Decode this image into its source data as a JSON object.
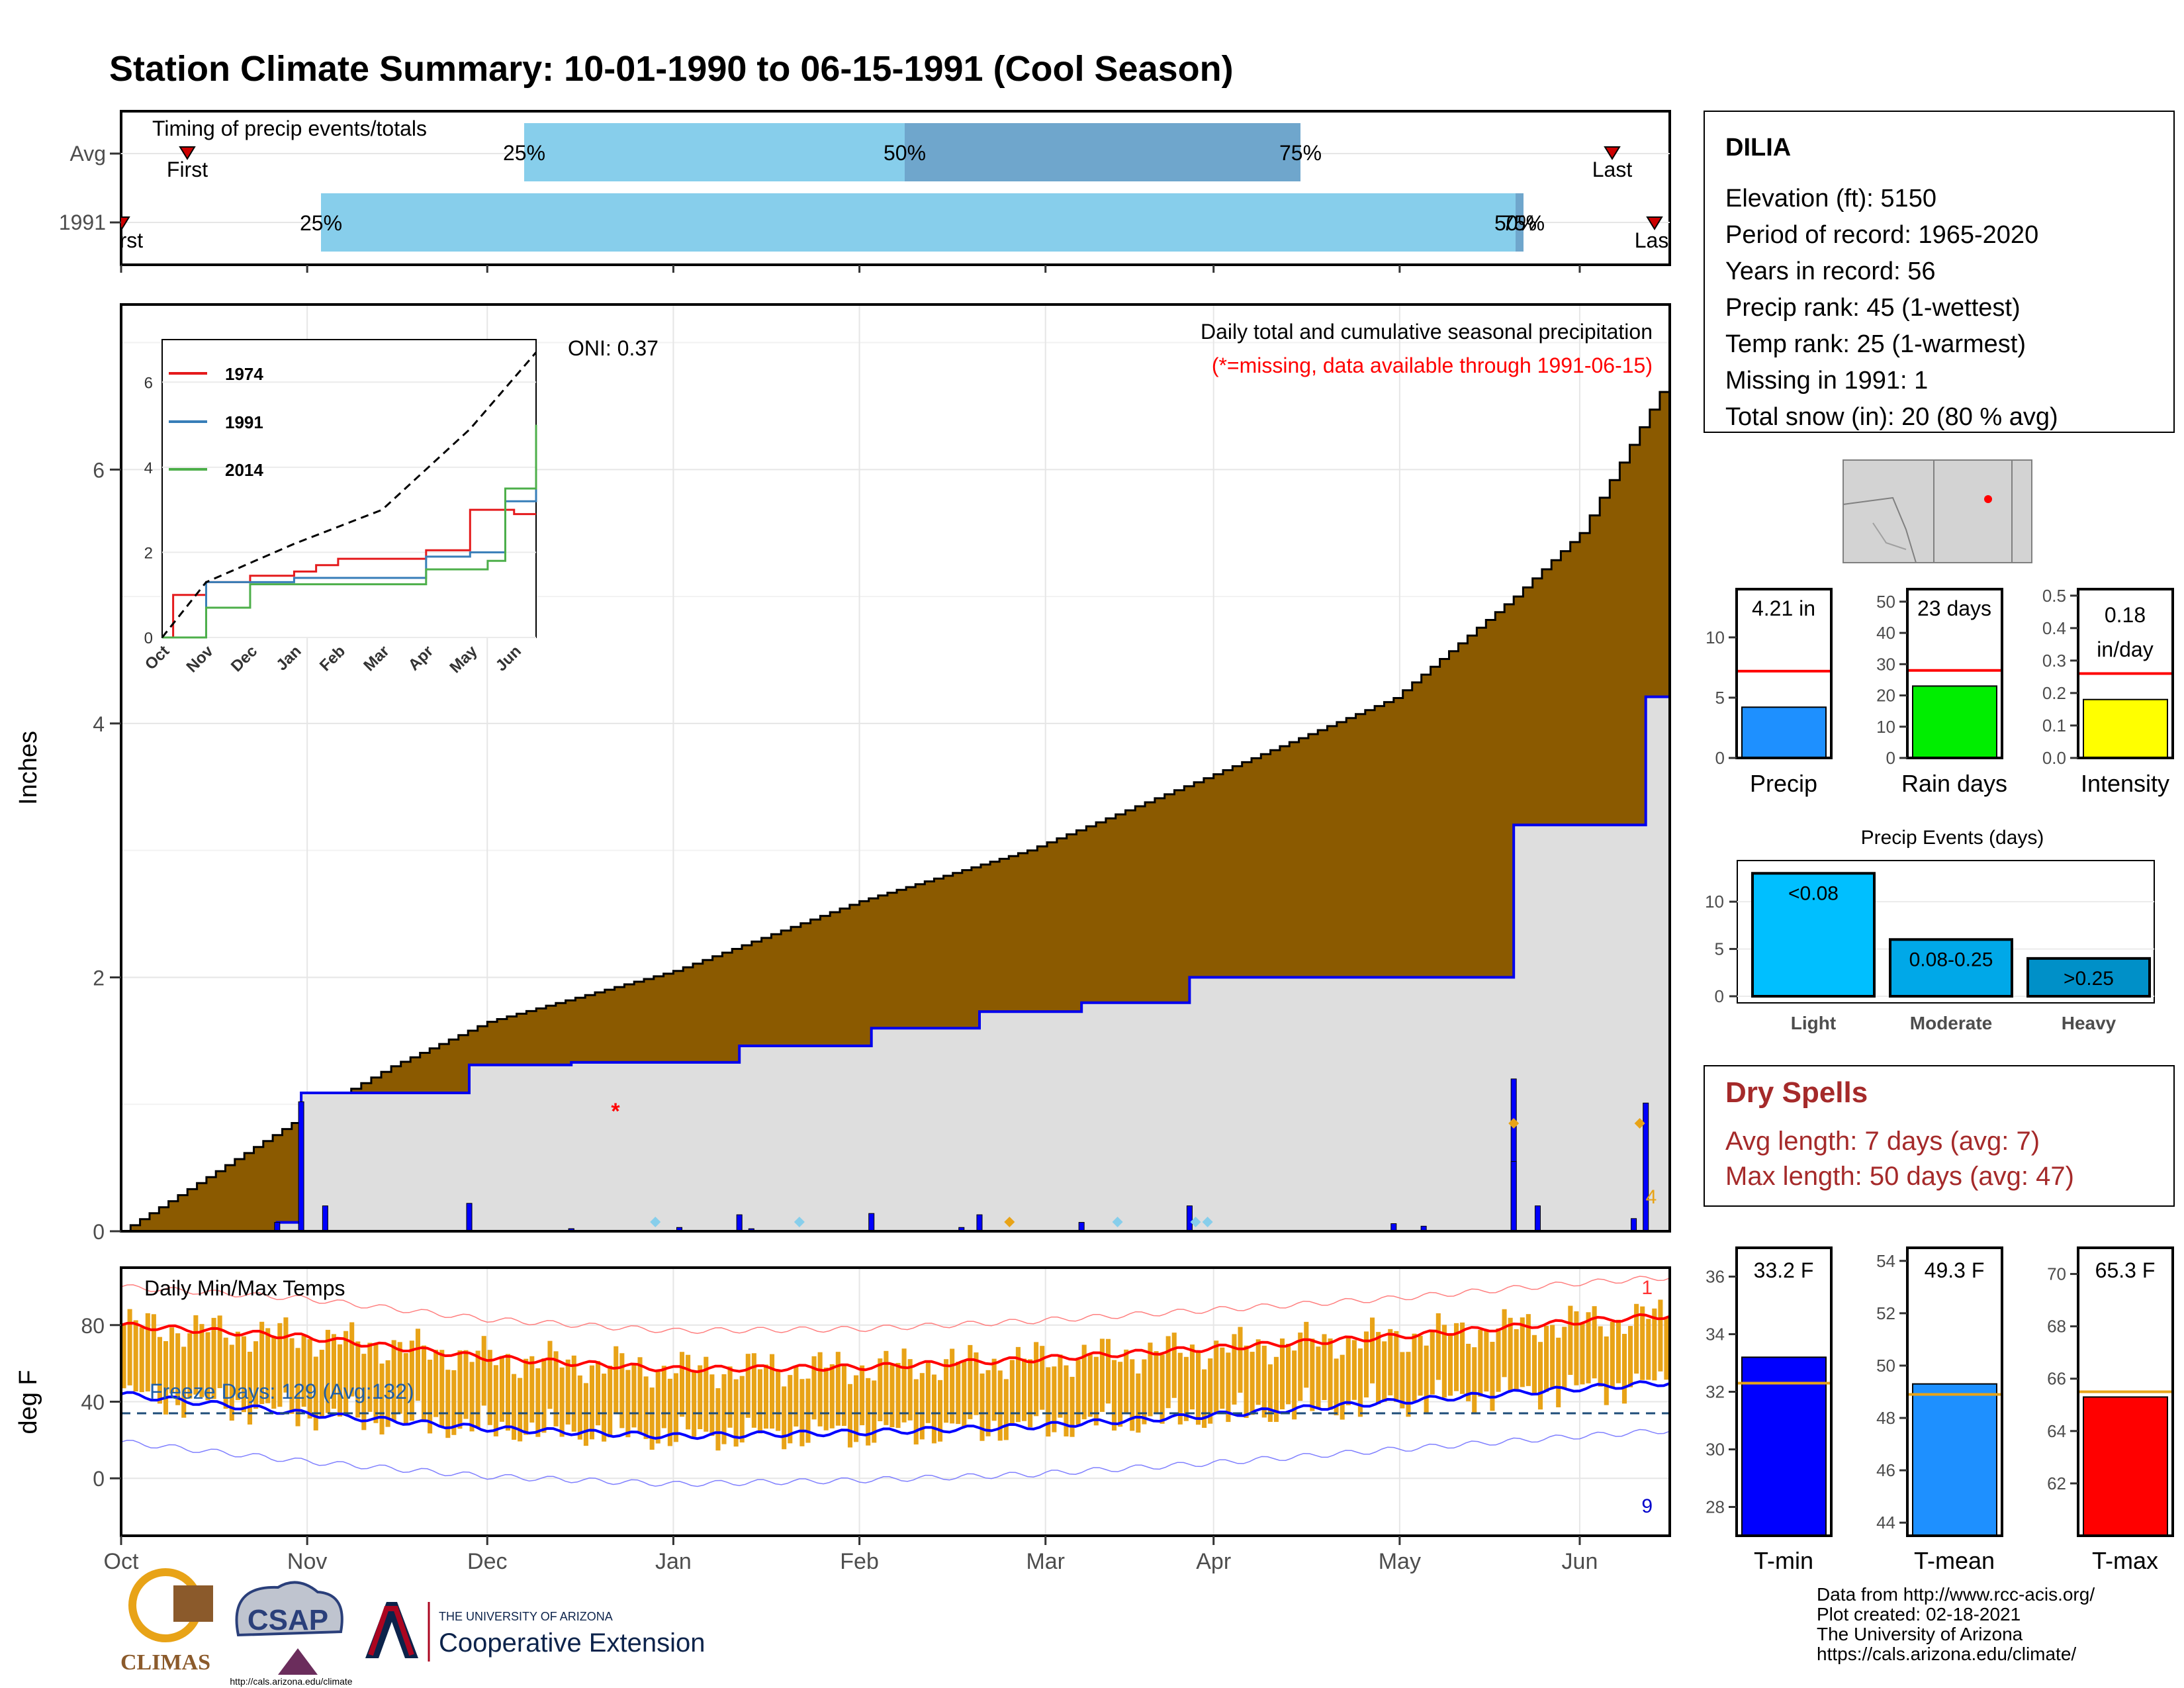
{
  "title": "Station Climate Summary: 10-01-1990 to 06-15-1991 (Cool Season)",
  "timing": {
    "heading": "Timing of precip events/totals",
    "rows": [
      "Avg",
      "1991"
    ],
    "avg": {
      "first_label": "First",
      "last_label": "Last",
      "p25": "25%",
      "p50": "50%",
      "p75": "75%"
    },
    "y1991": {
      "first_label": "First",
      "last_label": "Last",
      "p25": "25%",
      "p50": "50%",
      "p75": "75%"
    }
  },
  "station": {
    "name": "DILIA",
    "lines": [
      "Elevation (ft): 5150",
      "Period of record: 1965-2020",
      "Years in record: 56",
      "Precip rank: 45 (1-wettest)",
      "Temp rank: 25 (1-warmest)",
      "Missing in 1991: 1",
      "Total snow (in): 20 (80 % avg)"
    ]
  },
  "precip_panel": {
    "ylabel": "Inches",
    "yticks": [
      "0",
      "2",
      "4",
      "6"
    ],
    "title": "Daily total and cumulative seasonal precipitation",
    "subtitle": "(*=missing, data available through 1991-06-15)",
    "oni": "ONI: 0.37",
    "peak_label": "4"
  },
  "inset": {
    "yticks": [
      "0",
      "2",
      "4",
      "6"
    ],
    "xticks": [
      "Oct",
      "Nov",
      "Dec",
      "Jan",
      "Feb",
      "Mar",
      "Apr",
      "May",
      "Jun"
    ],
    "legend": [
      "1974",
      "1991",
      "2014"
    ]
  },
  "temp_panel": {
    "ylabel": "deg F",
    "title": "Daily Min/Max Temps",
    "yticks": [
      "0",
      "40",
      "80"
    ],
    "freeze": "Freeze Days: 129 (Avg:132)",
    "count_top": "1",
    "count_bottom": "9"
  },
  "xaxis": {
    "months": [
      "Oct",
      "Nov",
      "Dec",
      "Jan",
      "Feb",
      "Mar",
      "Apr",
      "May",
      "Jun"
    ]
  },
  "bars": {
    "precip": {
      "value": "4.21 in",
      "label": "Precip",
      "yticks": [
        "0",
        "5",
        "10"
      ]
    },
    "raindays": {
      "value": "23 days",
      "label": "Rain days",
      "yticks": [
        "0",
        "10",
        "20",
        "30",
        "40",
        "50"
      ]
    },
    "intensity": {
      "value1": "0.18",
      "value2": "in/day",
      "label": "Intensity",
      "yticks": [
        "0.0",
        "0.1",
        "0.2",
        "0.3",
        "0.4",
        "0.5"
      ]
    }
  },
  "events": {
    "title": "Precip Events (days)",
    "yticks": [
      "0",
      "5",
      "10"
    ],
    "categories": [
      "Light",
      "Moderate",
      "Heavy"
    ],
    "labels": [
      "<0.08",
      "0.08-0.25",
      ">0.25"
    ]
  },
  "dry": {
    "title": "Dry Spells",
    "avg": "Avg length: 7 days (avg: 7)",
    "max": "Max length: 50 days (avg: 47)"
  },
  "temps": {
    "tmin": {
      "value": "33.2 F",
      "label": "T-min",
      "yticks": [
        "28",
        "30",
        "32",
        "34",
        "36"
      ]
    },
    "tmean": {
      "value": "49.3 F",
      "label": "T-mean",
      "yticks": [
        "44",
        "46",
        "48",
        "50",
        "52",
        "54"
      ]
    },
    "tmax": {
      "value": "65.3 F",
      "label": "T-max",
      "yticks": [
        "62",
        "64",
        "66",
        "68",
        "70"
      ]
    }
  },
  "footer": {
    "lines": [
      "Data from http://www.rcc-acis.org/",
      "Plot created: 02-18-2021",
      "The University of Arizona",
      "https://cals.arizona.edu/climate/"
    ],
    "climas": "CLIMAS",
    "csap": "CSAP",
    "csap_url": "http://cals.arizona.edu/climate",
    "ua_small": "THE UNIVERSITY OF ARIZONA",
    "ua_big": "Cooperative Extension"
  },
  "colors": {
    "title": "#24408e",
    "cumulative_avg": "#8b5a00",
    "cumulative_1991": "#0000ff",
    "tmax_line": "#ff0000",
    "tmin_line": "#0000ff",
    "temp_bars": "#e8a317",
    "sky": "#87ceeb",
    "dry_spells": "#a52a2a"
  },
  "chart_data": [
    {
      "type": "area",
      "name": "cumulative precipitation",
      "x_unit": "day of season (0 = Oct 1)",
      "series": [
        {
          "name": "Avg",
          "x": [
            0,
            30,
            45,
            61,
            92,
            123,
            151,
            182,
            212,
            232,
            243,
            258
          ],
          "y": [
            0.0,
            0.9,
            1.3,
            1.65,
            2.05,
            2.6,
            3.0,
            3.6,
            4.2,
            5.0,
            5.5,
            6.75
          ]
        },
        {
          "name": "1991",
          "x": [
            0,
            26,
            30,
            58,
            75,
            103,
            125,
            143,
            160,
            178,
            230,
            232,
            250,
            254,
            258
          ],
          "y": [
            0.0,
            0.07,
            1.09,
            1.31,
            1.33,
            1.46,
            1.6,
            1.73,
            1.8,
            2.0,
            2.0,
            3.2,
            3.2,
            4.21,
            4.21
          ]
        }
      ],
      "ylim": [
        0,
        7.3
      ],
      "ylabel": "Inches"
    },
    {
      "type": "line",
      "name": "inset cumulative comparison",
      "series": [
        {
          "name": "1974",
          "x": [
            0,
            0.25,
            1,
            2,
            3,
            3.5,
            4,
            6,
            7,
            8,
            8.5
          ],
          "y": [
            0,
            1.0,
            1.3,
            1.45,
            1.55,
            1.7,
            1.85,
            2.05,
            3.0,
            2.9,
            2.9
          ]
        },
        {
          "name": "1991",
          "x": [
            0,
            1,
            3,
            6,
            7,
            7.8,
            8.5
          ],
          "y": [
            0,
            1.3,
            1.4,
            1.9,
            2.0,
            3.2,
            4.2
          ]
        },
        {
          "name": "2014",
          "x": [
            0,
            1,
            2,
            6,
            7.4,
            7.8,
            8.5
          ],
          "y": [
            0,
            0.7,
            1.25,
            1.6,
            1.8,
            3.5,
            5.0
          ]
        },
        {
          "name": "Avg",
          "x": [
            0,
            1,
            3,
            5,
            7,
            8.5
          ],
          "y": [
            0,
            1.3,
            2.2,
            3.0,
            4.9,
            6.7
          ]
        }
      ],
      "ylim": [
        0,
        7
      ]
    },
    {
      "type": "line",
      "name": "daily temps",
      "series": [
        {
          "name": "Max",
          "x": [
            0,
            30,
            61,
            92,
            123,
            151,
            182,
            212,
            243,
            258
          ],
          "y": [
            80,
            74,
            63,
            57,
            58,
            62,
            68,
            74,
            82,
            85
          ]
        },
        {
          "name": "Min",
          "x": [
            0,
            30,
            61,
            92,
            123,
            151,
            182,
            212,
            243,
            258
          ],
          "y": [
            44,
            34,
            26,
            22,
            24,
            27,
            33,
            40,
            47,
            50
          ]
        }
      ],
      "freeze_threshold": 32,
      "ylim": [
        -30,
        110
      ],
      "ylabel": "deg F"
    },
    {
      "type": "bar",
      "name": "Precip",
      "categories": [
        "Precip"
      ],
      "values": [
        4.21
      ],
      "avg": 7.2,
      "ylim": [
        0,
        14
      ]
    },
    {
      "type": "bar",
      "name": "Rain days",
      "categories": [
        "Rain days"
      ],
      "values": [
        23
      ],
      "avg": 28,
      "ylim": [
        0,
        54
      ]
    },
    {
      "type": "bar",
      "name": "Intensity",
      "categories": [
        "Intensity"
      ],
      "values": [
        0.18
      ],
      "avg": 0.26,
      "ylim": [
        0,
        0.52
      ]
    },
    {
      "type": "bar",
      "name": "Precip Events (days)",
      "categories": [
        "Light",
        "Moderate",
        "Heavy"
      ],
      "values": [
        13,
        6,
        4
      ],
      "ylim": [
        0,
        14
      ]
    },
    {
      "type": "bar",
      "name": "T-min",
      "categories": [
        "T-min"
      ],
      "values": [
        33.2
      ],
      "avg": 32.3,
      "ylim": [
        27,
        37
      ]
    },
    {
      "type": "bar",
      "name": "T-mean",
      "categories": [
        "T-mean"
      ],
      "values": [
        49.3
      ],
      "avg": 48.9,
      "ylim": [
        43.5,
        54.5
      ]
    },
    {
      "type": "bar",
      "name": "T-max",
      "categories": [
        "T-max"
      ],
      "values": [
        65.3
      ],
      "avg": 65.5,
      "ylim": [
        60,
        71
      ]
    }
  ]
}
